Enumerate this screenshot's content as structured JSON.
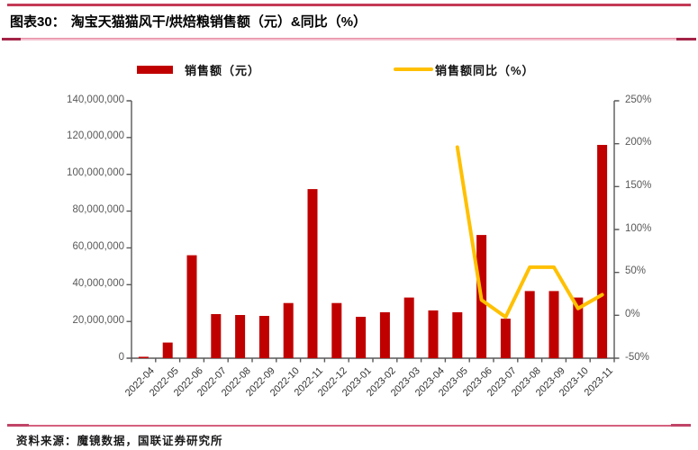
{
  "header": {
    "figure_label": "图表30：",
    "title": "淘宝天猫猫风干/烘焙粮销售额（元）&同比（%）"
  },
  "legend": {
    "sales": {
      "label": "销售额（元）",
      "color": "#c00000"
    },
    "yoy": {
      "label": "销售额同比（%）",
      "color": "#ffc000"
    }
  },
  "chart_data": {
    "type": "bar+line",
    "title": "淘宝天猫猫风干/烘焙粮销售额（元）&同比（%）",
    "grid": false,
    "legend_position": "top",
    "categories": [
      "2022-04",
      "2022-05",
      "2022-06",
      "2022-07",
      "2022-08",
      "2022-09",
      "2022-10",
      "2022-11",
      "2022-12",
      "2023-01",
      "2023-02",
      "2023-03",
      "2023-04",
      "2023-05",
      "2023-06",
      "2023-07",
      "2023-08",
      "2023-09",
      "2023-10",
      "2023-11"
    ],
    "series": [
      {
        "name": "销售额（元）",
        "type": "bar",
        "axis": "left",
        "color": "#c00000",
        "values": [
          800000,
          8500000,
          56000000,
          24000000,
          23500000,
          23000000,
          30000000,
          92000000,
          30000000,
          22500000,
          25000000,
          33000000,
          26000000,
          25000000,
          67000000,
          21500000,
          36500000,
          36500000,
          33000000,
          116000000
        ]
      },
      {
        "name": "销售额同比（%）",
        "type": "line",
        "axis": "right",
        "color": "#ffc000",
        "values": [
          null,
          null,
          null,
          null,
          null,
          null,
          null,
          null,
          null,
          null,
          null,
          null,
          null,
          196,
          18,
          -2,
          56,
          56,
          8,
          24
        ]
      }
    ],
    "left_axis": {
      "min": 0,
      "max": 140000000,
      "step": 20000000,
      "tick_labels": [
        "140,000,000",
        "120,000,000",
        "100,000,000",
        "80,000,000",
        "60,000,000",
        "40,000,000",
        "20,000,000",
        "0"
      ]
    },
    "right_axis": {
      "min": -50,
      "max": 250,
      "step": 50,
      "tick_labels": [
        "250%",
        "200%",
        "150%",
        "100%",
        "50%",
        "0%",
        "-50%"
      ]
    }
  },
  "footer": {
    "source": "资料来源：魔镜数据，国联证券研究所"
  }
}
